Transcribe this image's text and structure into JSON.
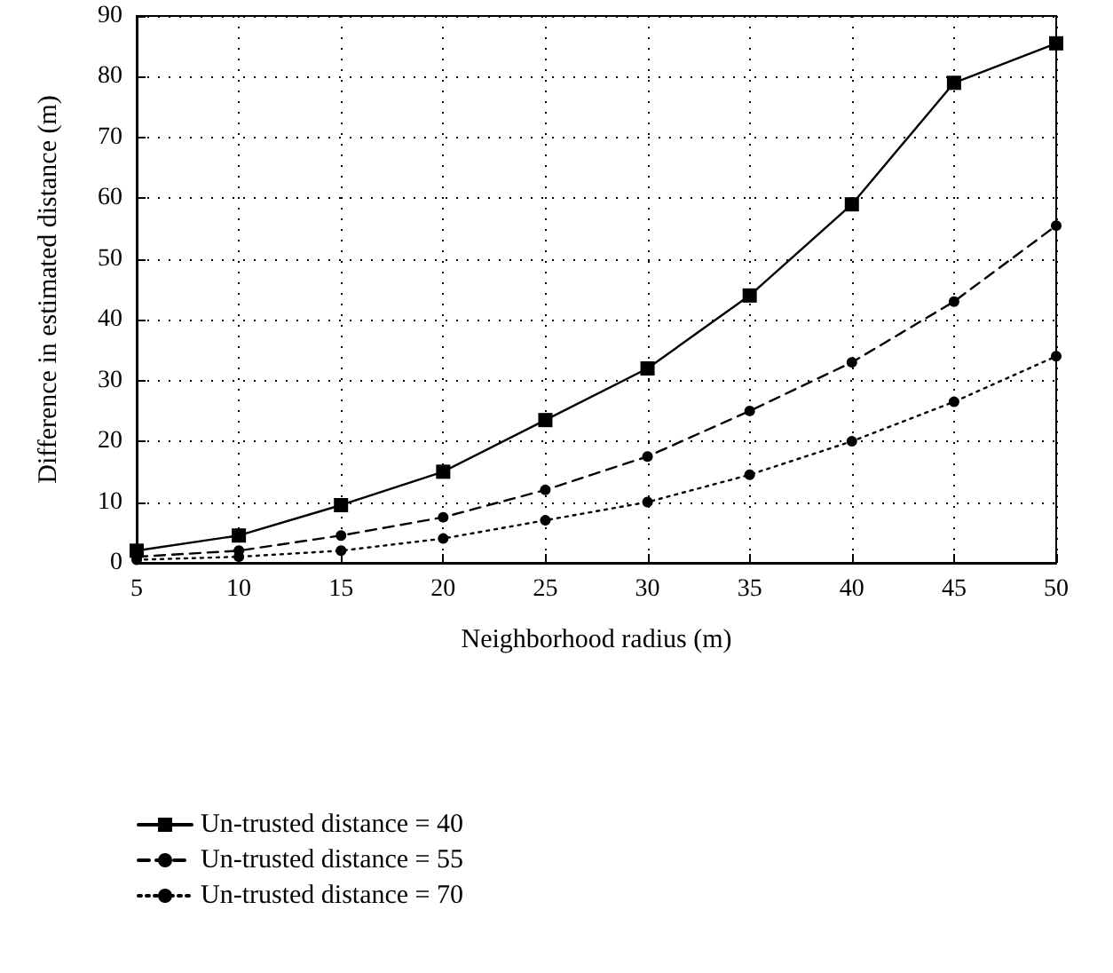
{
  "chart_data": {
    "type": "line",
    "xlabel": "Neighborhood radius (m)",
    "ylabel": "Difference in estimated distance (m)",
    "x": [
      5,
      10,
      15,
      20,
      25,
      30,
      35,
      40,
      45,
      50
    ],
    "xlim": [
      5,
      50
    ],
    "xticks": [
      5,
      10,
      15,
      20,
      25,
      30,
      35,
      40,
      45,
      50
    ],
    "ylim": [
      0,
      90
    ],
    "yticks": [
      0,
      10,
      20,
      30,
      40,
      50,
      60,
      70,
      80,
      90
    ],
    "grid": true,
    "legend": "bottom",
    "series": [
      {
        "name": "Un-trusted distance = 40",
        "color": "#000000",
        "marker": "square",
        "line_style": "solid",
        "values": [
          2,
          4.5,
          9.5,
          15,
          23.5,
          32,
          44,
          59,
          79,
          85.5
        ]
      },
      {
        "name": "Un-trusted distance = 55",
        "color": "#000000",
        "marker": "circle",
        "line_style": "dashed",
        "values": [
          1,
          2,
          4.5,
          7.5,
          12,
          17.5,
          25,
          33,
          43,
          55.5
        ]
      },
      {
        "name": "Un-trusted distance = 70",
        "color": "#000000",
        "marker": "circle",
        "line_style": "dotted",
        "values": [
          0.5,
          1,
          2,
          4,
          7,
          10,
          14.5,
          20,
          26.5,
          34
        ]
      }
    ]
  }
}
